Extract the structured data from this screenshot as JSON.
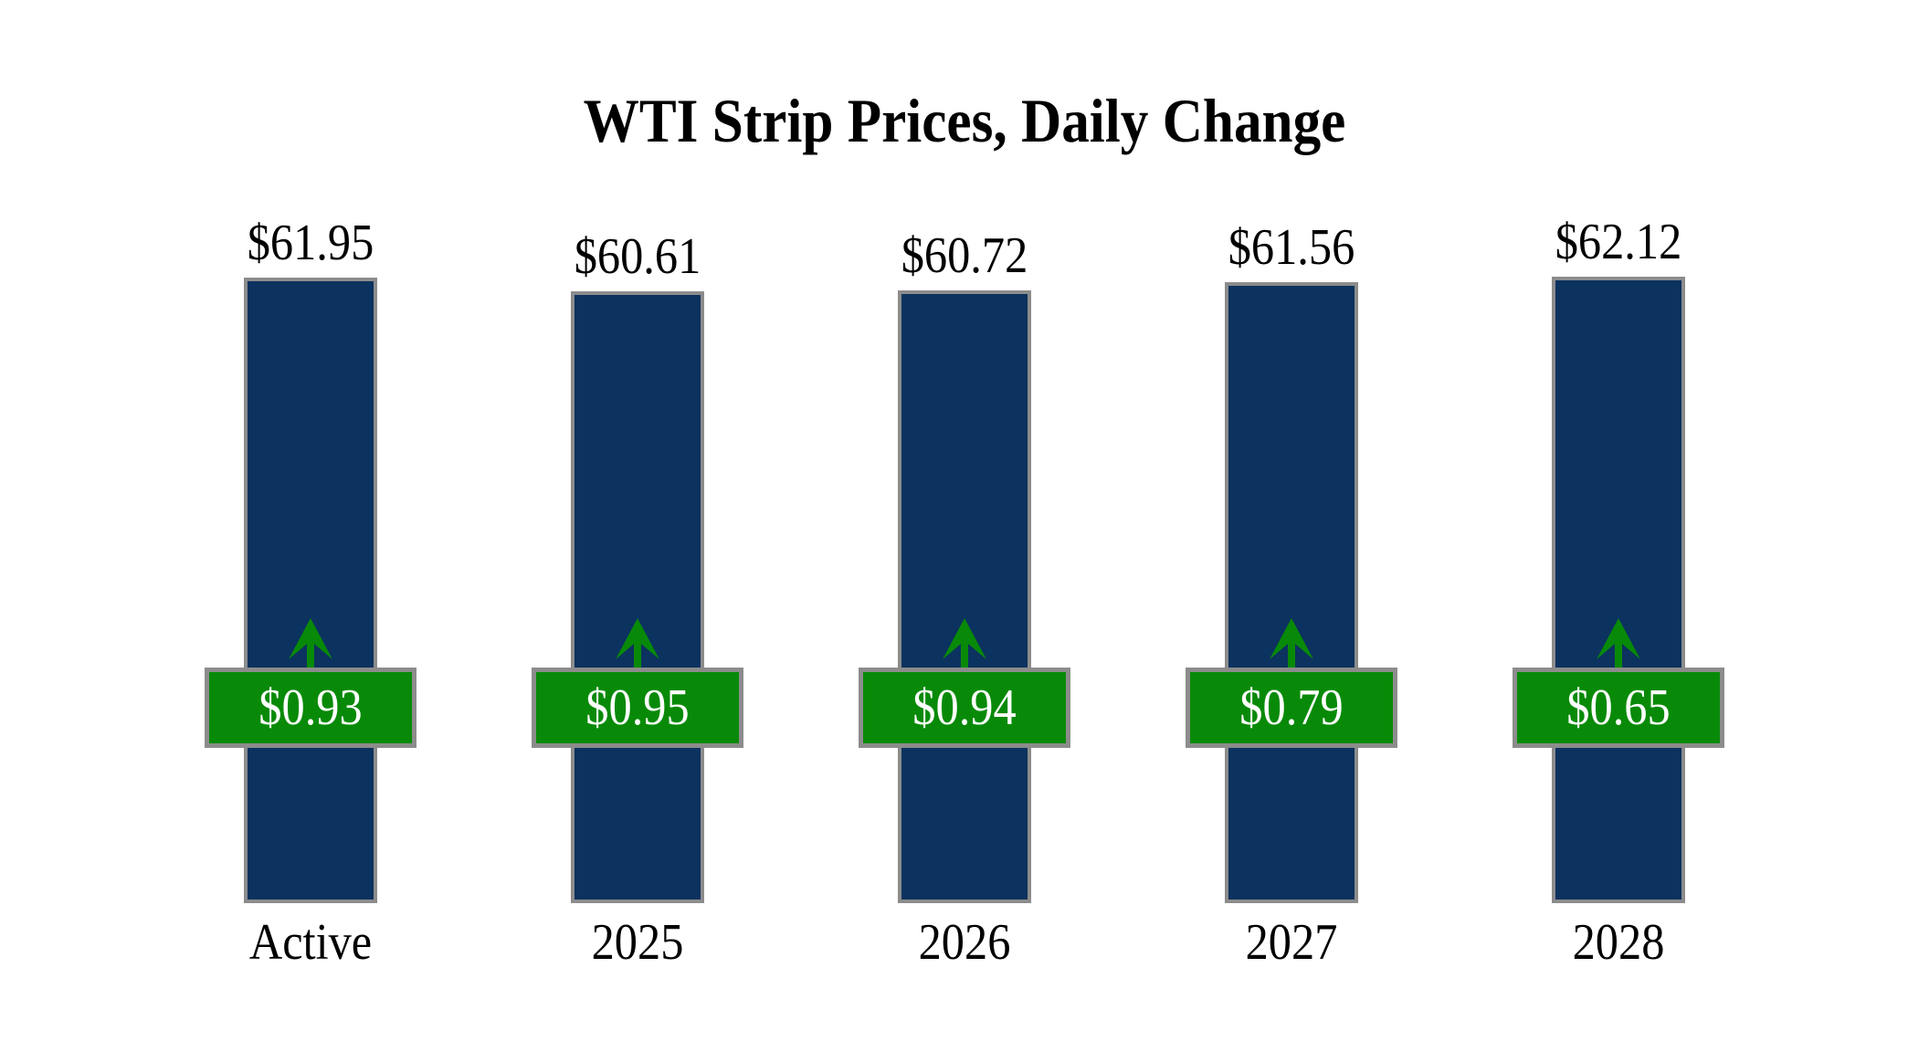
{
  "title": "WTI Strip Prices, Daily Change",
  "chart_data": {
    "type": "bar",
    "title": "WTI Strip Prices, Daily Change",
    "categories": [
      "Active",
      "2025",
      "2026",
      "2027",
      "2028"
    ],
    "series": [
      {
        "name": "Strip price",
        "values": [
          61.95,
          60.61,
          60.72,
          61.56,
          62.12
        ],
        "labels": [
          "$61.95",
          "$60.61",
          "$60.72",
          "$61.56",
          "$62.12"
        ]
      },
      {
        "name": "Daily change",
        "values": [
          0.93,
          0.95,
          0.94,
          0.79,
          0.65
        ],
        "labels": [
          "$0.93",
          "$0.95",
          "$0.94",
          "$0.79",
          "$0.65"
        ],
        "direction": "up"
      }
    ],
    "ylim": [
      0,
      62.12
    ],
    "grid": false,
    "legend": "none",
    "colors": {
      "bar_fill": "#0C325F",
      "bar_border": "#8C8C8C",
      "change_fill": "#088A08",
      "change_border": "#8C8C8C",
      "change_text": "#FFFFFF",
      "arrow": "#088A08",
      "label_text": "#000000",
      "background": "#FFFFFF"
    }
  }
}
